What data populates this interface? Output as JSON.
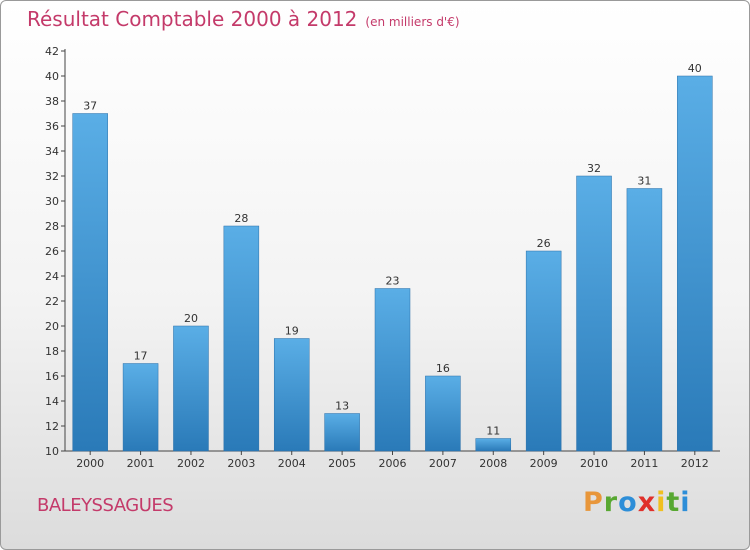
{
  "header": {
    "title": "Résultat Comptable 2000 à 2012",
    "unit": "(en milliers d'€)"
  },
  "footer": {
    "commune": "BALEYSSAGUES",
    "logo": "Proxiti"
  },
  "colors": {
    "bar_light": "#5aaee6",
    "bar_dark": "#2a7ab8",
    "title": "#c43a6a",
    "logo_letters": [
      "#e8963a",
      "#58a832",
      "#2d8ed8",
      "#e0302a",
      "#f0c020",
      "#58a832",
      "#2d8ed8"
    ]
  },
  "chart_data": {
    "type": "bar",
    "title": "Résultat Comptable 2000 à 2012",
    "subtitle": "(en milliers d'€)",
    "categories": [
      "2000",
      "2001",
      "2002",
      "2003",
      "2004",
      "2005",
      "2006",
      "2007",
      "2008",
      "2009",
      "2010",
      "2011",
      "2012"
    ],
    "values": [
      37,
      17,
      20,
      28,
      19,
      13,
      23,
      16,
      11,
      26,
      32,
      31,
      40
    ],
    "ylim": [
      10,
      42
    ],
    "yticks": [
      10,
      12,
      14,
      16,
      18,
      20,
      22,
      24,
      26,
      28,
      30,
      32,
      34,
      36,
      38,
      40,
      42
    ],
    "grid": false,
    "legend": "none"
  }
}
